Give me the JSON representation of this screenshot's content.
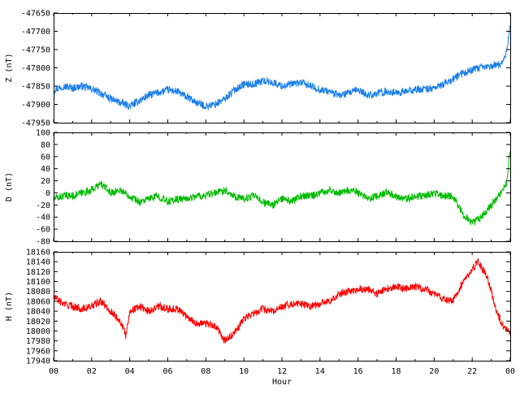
{
  "chart_data": [
    {
      "type": "line",
      "title": "",
      "xlabel": "",
      "ylabel": "Z (nT)",
      "ylim": [
        -47950,
        -47650
      ],
      "xlim": [
        0,
        24
      ],
      "yticks": [
        "-47650",
        "-47700",
        "-47750",
        "-47800",
        "-47850",
        "-47900",
        "-47950"
      ],
      "xticks": [],
      "grid": false,
      "legend": "none",
      "series": [
        {
          "color": "#1a7fe8",
          "x": [
            0,
            0.5,
            1,
            1.5,
            2,
            2.5,
            3,
            3.5,
            4,
            4.5,
            5,
            5.5,
            6,
            6.5,
            7,
            7.5,
            8,
            8.5,
            9,
            9.5,
            10,
            10.5,
            11,
            11.5,
            12,
            12.5,
            13,
            13.5,
            14,
            14.5,
            15,
            15.5,
            16,
            16.5,
            17,
            17.5,
            18,
            18.5,
            19,
            19.5,
            20,
            20.5,
            21,
            21.5,
            22,
            22.5,
            23,
            23.5,
            23.8,
            24
          ],
          "y": [
            -47860,
            -47850,
            -47855,
            -47850,
            -47858,
            -47870,
            -47885,
            -47895,
            -47905,
            -47890,
            -47875,
            -47868,
            -47860,
            -47865,
            -47880,
            -47895,
            -47905,
            -47900,
            -47885,
            -47860,
            -47845,
            -47845,
            -47835,
            -47840,
            -47850,
            -47845,
            -47840,
            -47850,
            -47860,
            -47865,
            -47875,
            -47870,
            -47860,
            -47875,
            -47870,
            -47865,
            -47868,
            -47865,
            -47860,
            -47858,
            -47855,
            -47845,
            -47830,
            -47815,
            -47805,
            -47800,
            -47795,
            -47790,
            -47760,
            -47680
          ]
        }
      ]
    },
    {
      "type": "line",
      "title": "",
      "xlabel": "",
      "ylabel": "D (nT)",
      "ylim": [
        -80,
        100
      ],
      "xlim": [
        0,
        24
      ],
      "yticks": [
        "100",
        "80",
        "60",
        "40",
        "20",
        "0",
        "-20",
        "-40",
        "-60",
        "-80"
      ],
      "xticks": [],
      "grid": false,
      "legend": "none",
      "series": [
        {
          "color": "#00bb00",
          "x": [
            0,
            0.5,
            1,
            1.5,
            2,
            2.5,
            3,
            3.5,
            4,
            4.5,
            5,
            5.5,
            6,
            6.5,
            7,
            7.5,
            8,
            8.5,
            9,
            9.5,
            10,
            10.5,
            11,
            11.5,
            12,
            12.5,
            13,
            13.5,
            14,
            14.5,
            15,
            15.5,
            16,
            16.5,
            17,
            17.5,
            18,
            18.5,
            19,
            19.5,
            20,
            20.5,
            21,
            21.5,
            22,
            22.5,
            23,
            23.5,
            23.8,
            24
          ],
          "y": [
            -10,
            -5,
            -5,
            0,
            5,
            15,
            0,
            5,
            -5,
            -15,
            -10,
            -5,
            -15,
            -10,
            -10,
            -5,
            -5,
            0,
            5,
            -5,
            -10,
            -5,
            -15,
            -20,
            -10,
            -15,
            -5,
            -5,
            0,
            5,
            0,
            5,
            0,
            -10,
            -5,
            0,
            -5,
            -10,
            -5,
            -5,
            0,
            -5,
            -5,
            -35,
            -50,
            -40,
            -20,
            0,
            15,
            70
          ]
        }
      ]
    },
    {
      "type": "line",
      "title": "",
      "xlabel": "Hour",
      "ylabel": "H (nT)",
      "ylim": [
        17940,
        18160
      ],
      "xlim": [
        0,
        24
      ],
      "yticks": [
        "18160",
        "18140",
        "18120",
        "18100",
        "18080",
        "18060",
        "18040",
        "18020",
        "18000",
        "17980",
        "17960",
        "17940"
      ],
      "xticks": [
        "00",
        "02",
        "04",
        "06",
        "08",
        "10",
        "12",
        "14",
        "16",
        "18",
        "20",
        "22",
        "00"
      ],
      "grid": false,
      "legend": "none",
      "series": [
        {
          "color": "#ff0000",
          "x": [
            0,
            0.5,
            1,
            1.5,
            2,
            2.5,
            3,
            3.5,
            3.8,
            4,
            4.5,
            5,
            5.5,
            6,
            6.5,
            7,
            7.5,
            8,
            8.5,
            9,
            9.5,
            10,
            10.5,
            11,
            11.5,
            12,
            12.5,
            13,
            13.5,
            14,
            14.5,
            15,
            15.5,
            16,
            16.5,
            17,
            17.5,
            18,
            18.5,
            19,
            19.5,
            20,
            20.5,
            21,
            21.5,
            22,
            22.3,
            22.8,
            23.2,
            23.6,
            24
          ],
          "y": [
            18070,
            18055,
            18050,
            18045,
            18050,
            18060,
            18040,
            18020,
            17990,
            18040,
            18050,
            18040,
            18050,
            18045,
            18045,
            18030,
            18015,
            18015,
            18010,
            17980,
            17995,
            18025,
            18035,
            18045,
            18040,
            18050,
            18055,
            18055,
            18050,
            18055,
            18060,
            18075,
            18080,
            18085,
            18085,
            18075,
            18085,
            18090,
            18085,
            18090,
            18085,
            18075,
            18065,
            18060,
            18100,
            18125,
            18140,
            18110,
            18050,
            18010,
            18000
          ]
        }
      ]
    }
  ]
}
